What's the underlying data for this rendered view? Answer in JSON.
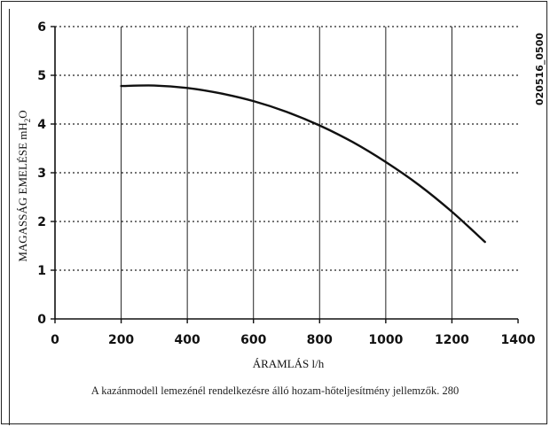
{
  "chart_data": {
    "type": "line",
    "xlabel": "ÁRAMLÁS l/h",
    "ylabel": "MAGASSÁG EMELÉSE mH",
    "ylabel_subscript": "2",
    "ylabel_suffix": "O",
    "xlim": [
      0,
      1400
    ],
    "ylim": [
      0,
      6
    ],
    "x_ticks": [
      "0",
      "200",
      "400",
      "600",
      "800",
      "1000",
      "1200",
      "1400"
    ],
    "y_ticks": [
      "0",
      "1",
      "2",
      "3",
      "4",
      "5",
      "6"
    ],
    "grid": true,
    "series": [
      {
        "x": [
          200,
          300,
          400,
          500,
          600,
          700,
          800,
          900,
          1000,
          1100,
          1200,
          1300
        ],
        "y": [
          4.78,
          4.79,
          4.74,
          4.63,
          4.47,
          4.25,
          3.97,
          3.63,
          3.22,
          2.75,
          2.2,
          1.58
        ]
      }
    ],
    "side_code": "020516_0500"
  },
  "caption": "A kazánmodell lemezénél rendelkezésre álló hozam-hőteljesítmény jellemzők. 280"
}
